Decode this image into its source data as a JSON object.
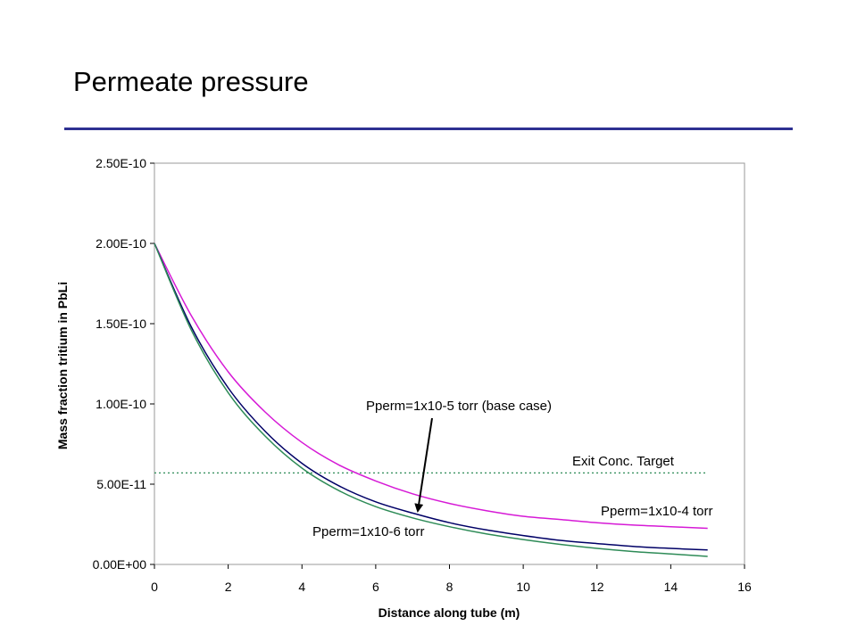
{
  "slide": {
    "title": "Permeate pressure",
    "rule_color": "#2e3192"
  },
  "chart_data": {
    "type": "line",
    "xlabel": "Distance along tube (m)",
    "ylabel": "Mass fraction tritium in PbLi",
    "xlim": [
      0,
      16
    ],
    "ylim": [
      0,
      2.5e-10
    ],
    "x_ticks": [
      "0",
      "2",
      "4",
      "6",
      "8",
      "10",
      "12",
      "14",
      "16"
    ],
    "y_ticks": [
      "0.00E+00",
      "5.00E-11",
      "1.00E-10",
      "1.50E-10",
      "2.00E-10",
      "2.50E-10"
    ],
    "x_tick_values": [
      0,
      2,
      4,
      6,
      8,
      10,
      12,
      14,
      16
    ],
    "y_tick_values": [
      0,
      5e-11,
      1e-10,
      1.5e-10,
      2e-10,
      2.5e-10
    ],
    "grid": false,
    "series": [
      {
        "name": "Pperm=1x10-4 torr",
        "color": "#d61ad6",
        "x": [
          0,
          1,
          2,
          3,
          4,
          5,
          6,
          7,
          8,
          9,
          10,
          11,
          12,
          13,
          14,
          15
        ],
        "y": [
          2e-10,
          1.55e-10,
          1.2e-10,
          9.5e-11,
          7.6e-11,
          6.2e-11,
          5.2e-11,
          4.4e-11,
          3.8e-11,
          3.35e-11,
          3e-11,
          2.8e-11,
          2.6e-11,
          2.45e-11,
          2.35e-11,
          2.25e-11
        ]
      },
      {
        "name": "Pperm=1x10-5 torr (base case)",
        "color": "#000066",
        "x": [
          0,
          1,
          2,
          3,
          4,
          5,
          6,
          7,
          8,
          9,
          10,
          11,
          12,
          13,
          14,
          15
        ],
        "y": [
          2e-10,
          1.48e-10,
          1.1e-10,
          8.3e-11,
          6.3e-11,
          4.9e-11,
          3.9e-11,
          3.2e-11,
          2.6e-11,
          2.15e-11,
          1.8e-11,
          1.5e-11,
          1.3e-11,
          1.12e-11,
          1e-11,
          9e-12
        ]
      },
      {
        "name": "Pperm=1x10-6 torr",
        "color": "#2e8b57",
        "x": [
          0,
          1,
          2,
          3,
          4,
          5,
          6,
          7,
          8,
          9,
          10,
          11,
          12,
          13,
          14,
          15
        ],
        "y": [
          2e-10,
          1.46e-10,
          1.07e-10,
          8e-11,
          6e-11,
          4.6e-11,
          3.6e-11,
          2.9e-11,
          2.35e-11,
          1.9e-11,
          1.55e-11,
          1.25e-11,
          1e-11,
          8e-12,
          6.5e-12,
          5e-12
        ]
      }
    ],
    "reference_line": {
      "label": "Exit Conc. Target",
      "y": 5.7e-11,
      "x_range": [
        0,
        15
      ],
      "color": "#2e8b57"
    },
    "annotations": [
      {
        "text": "Pperm=1x10-5 torr (base case)",
        "arrow_to_x": 7.1,
        "arrow_to_y": 3.3e-11
      },
      {
        "text": "Pperm=1x10-4 torr"
      },
      {
        "text": "Pperm=1x10-6 torr"
      },
      {
        "text": "Exit Conc. Target"
      }
    ]
  }
}
